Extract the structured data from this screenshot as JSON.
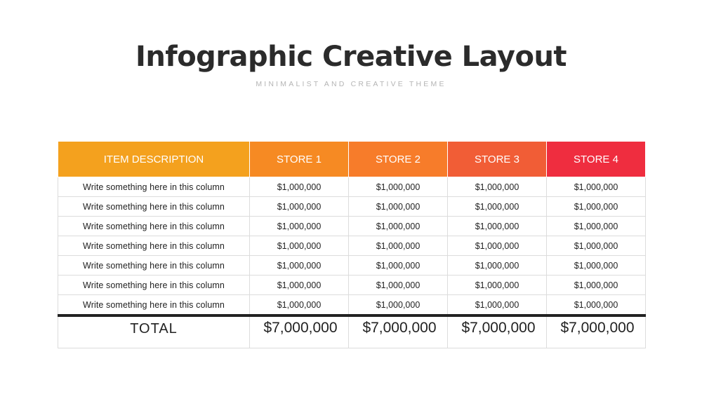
{
  "header": {
    "title": "Infographic Creative Layout",
    "subtitle": "MINIMALIST AND CREATIVE THEME"
  },
  "table": {
    "columns": [
      {
        "label": "ITEM DESCRIPTION",
        "color": "#f4a11e"
      },
      {
        "label": "STORE 1",
        "color": "#f68a23"
      },
      {
        "label": "STORE 2",
        "color": "#f77c2a"
      },
      {
        "label": "STORE 3",
        "color": "#f15d36"
      },
      {
        "label": "STORE 4",
        "color": "#ef2d3f"
      }
    ],
    "rows": [
      [
        "Write something here in this column",
        "$1,000,000",
        "$1,000,000",
        "$1,000,000",
        "$1,000,000"
      ],
      [
        "Write something here in this column",
        "$1,000,000",
        "$1,000,000",
        "$1,000,000",
        "$1,000,000"
      ],
      [
        "Write something here in this column",
        "$1,000,000",
        "$1,000,000",
        "$1,000,000",
        "$1,000,000"
      ],
      [
        "Write something here in this column",
        "$1,000,000",
        "$1,000,000",
        "$1,000,000",
        "$1,000,000"
      ],
      [
        "Write something here in this column",
        "$1,000,000",
        "$1,000,000",
        "$1,000,000",
        "$1,000,000"
      ],
      [
        "Write something here in this column",
        "$1,000,000",
        "$1,000,000",
        "$1,000,000",
        "$1,000,000"
      ],
      [
        "Write something here in this column",
        "$1,000,000",
        "$1,000,000",
        "$1,000,000",
        "$1,000,000"
      ]
    ],
    "total": {
      "label": "TOTAL",
      "values": [
        "$7,000,000",
        "$7,000,000",
        "$7,000,000",
        "$7,000,000"
      ]
    }
  }
}
